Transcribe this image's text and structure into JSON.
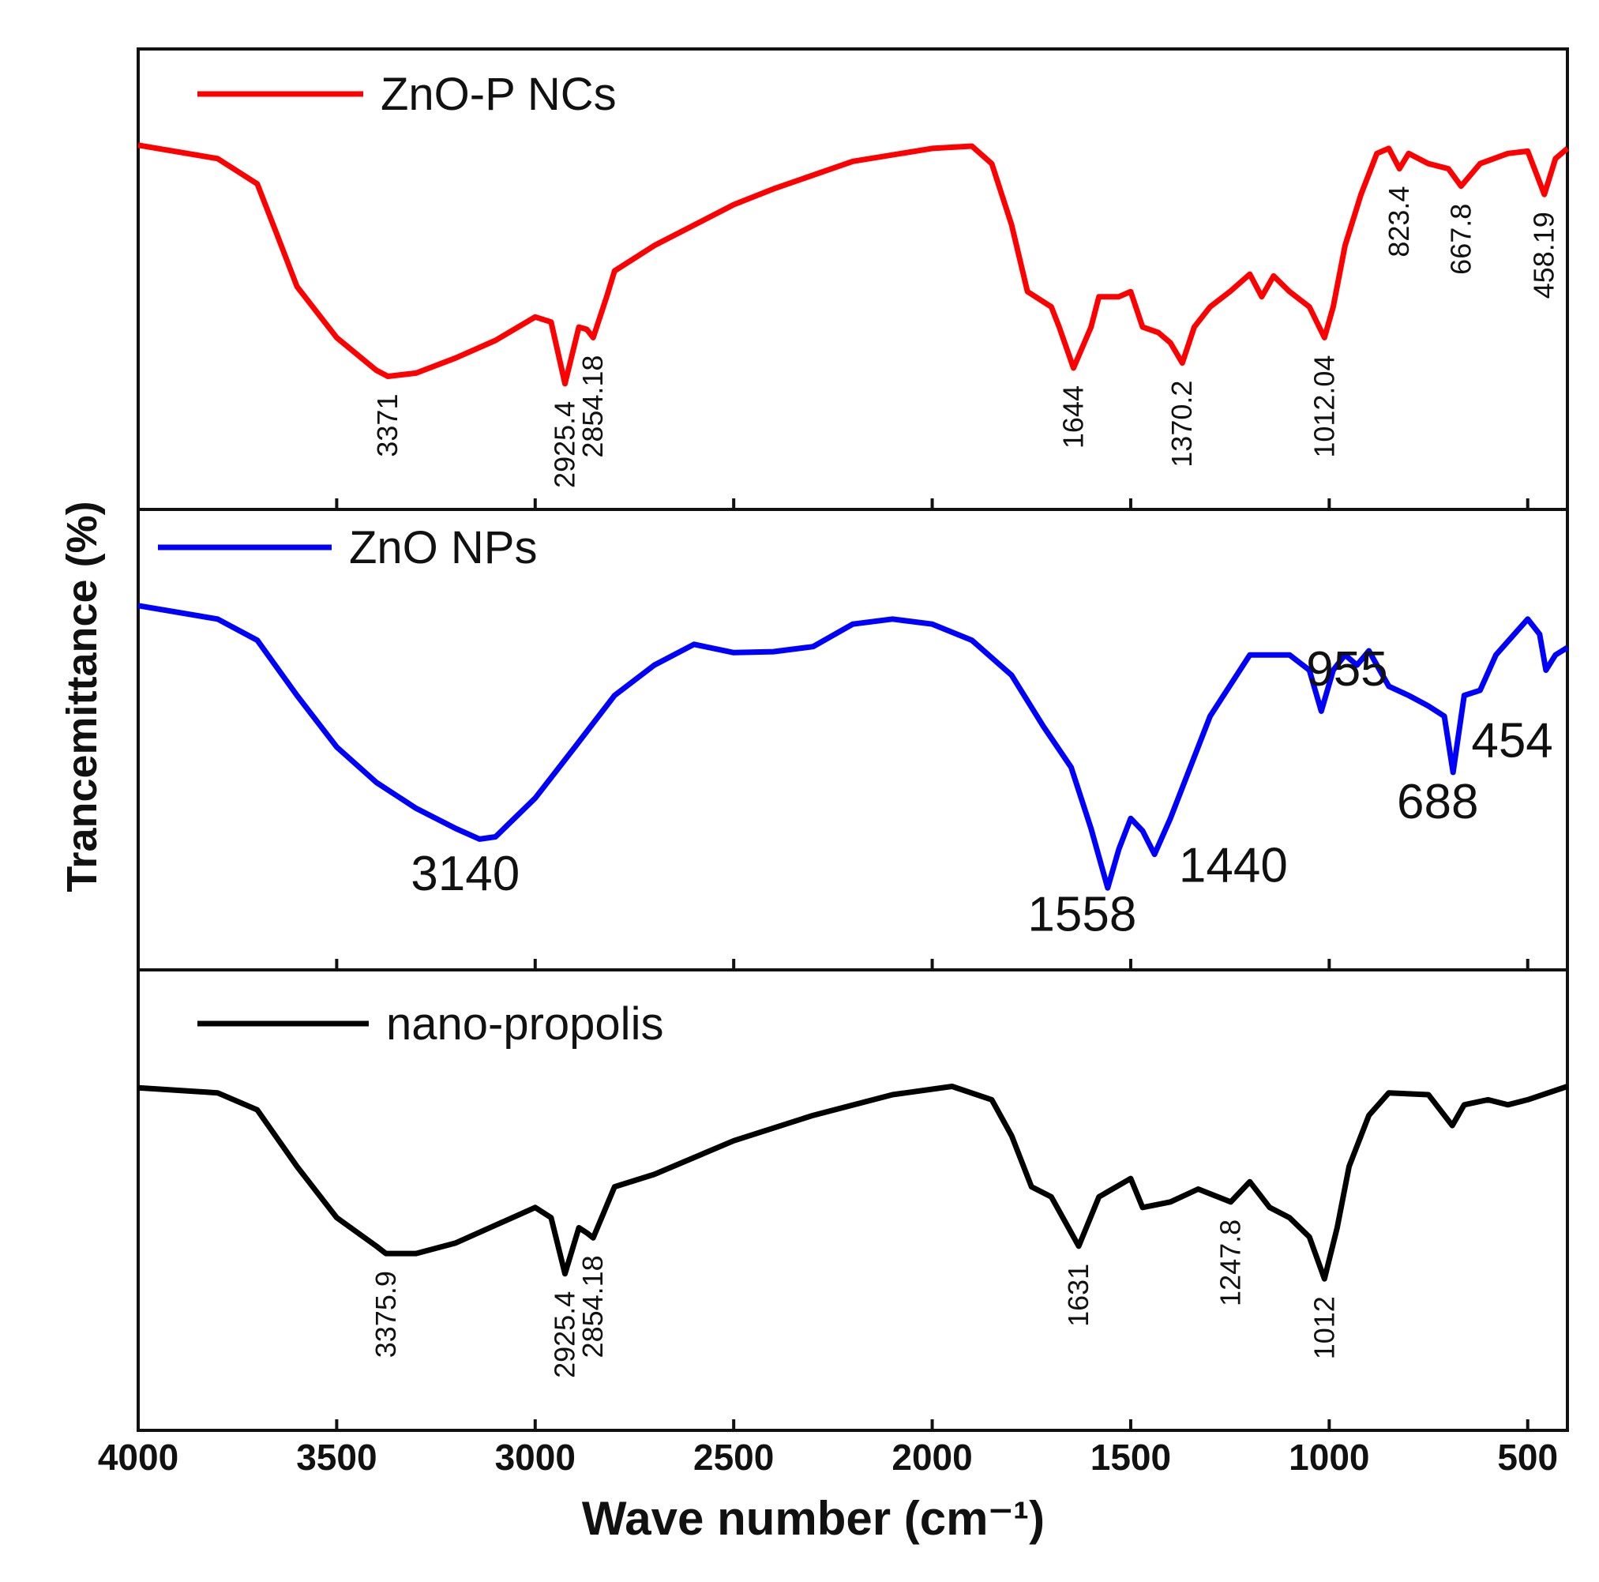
{
  "chart_data": {
    "type": "line",
    "xlabel": "Wave number (cm⁻¹)",
    "ylabel": "Trancemittance (%)",
    "xlim": [
      4000,
      400
    ],
    "xticks": [
      4000,
      3500,
      3000,
      2500,
      2000,
      1500,
      1000,
      500
    ],
    "ylim": [
      0,
      100
    ],
    "series": [
      {
        "name": "ZnO-P NCs",
        "color": "#ff0000",
        "x": [
          4000,
          3800,
          3700,
          3650,
          3600,
          3500,
          3400,
          3371,
          3300,
          3200,
          3100,
          3000,
          2960,
          2925,
          2890,
          2870,
          2854,
          2820,
          2800,
          2700,
          2500,
          2400,
          2200,
          2000,
          1900,
          1850,
          1800,
          1760,
          1700,
          1680,
          1644,
          1600,
          1580,
          1530,
          1500,
          1470,
          1430,
          1400,
          1370,
          1340,
          1300,
          1250,
          1200,
          1170,
          1140,
          1100,
          1050,
          1012,
          990,
          960,
          920,
          880,
          850,
          823,
          800,
          750,
          700,
          668,
          620,
          550,
          500,
          458,
          430,
          400
        ],
        "values": [
          79.1,
          76.2,
          70.7,
          59.6,
          48.4,
          37.3,
          30.2,
          28.9,
          29.6,
          32.9,
          36.7,
          41.8,
          40.7,
          27.3,
          39.6,
          39.1,
          37.3,
          46.2,
          51.8,
          57.3,
          66.2,
          69.6,
          75.6,
          78.4,
          78.9,
          75.1,
          61.8,
          47.3,
          44,
          39.6,
          30.7,
          39.6,
          46.2,
          46.2,
          47.3,
          39.6,
          38.4,
          36.2,
          31.8,
          39.6,
          44,
          47.3,
          51.1,
          46.2,
          50.7,
          47.3,
          44,
          37.3,
          44,
          57.3,
          68.4,
          77.3,
          78.4,
          74,
          77.3,
          75.1,
          74,
          70.2,
          75.1,
          77.3,
          77.8,
          68.4,
          76.2,
          78.4
        ],
        "peaks": [
          3371,
          2925.4,
          2854.18,
          1644,
          1370.2,
          1012.04,
          823.4,
          667.8,
          458.19
        ]
      },
      {
        "name": "ZnO NPs",
        "color": "#0000ff",
        "x": [
          4000,
          3800,
          3700,
          3600,
          3500,
          3400,
          3300,
          3200,
          3140,
          3100,
          3000,
          2900,
          2800,
          2700,
          2600,
          2500,
          2400,
          2300,
          2200,
          2100,
          2000,
          1900,
          1800,
          1720,
          1650,
          1600,
          1558,
          1530,
          1500,
          1470,
          1440,
          1400,
          1300,
          1200,
          1100,
          1050,
          1020,
          990,
          960,
          930,
          900,
          850,
          800,
          750,
          710,
          688,
          660,
          620,
          580,
          500,
          470,
          454,
          430,
          400
        ],
        "values": [
          79.1,
          76.2,
          71.6,
          59.6,
          48.4,
          40.7,
          35.1,
          30.7,
          28.4,
          28.9,
          37.3,
          48.4,
          59.6,
          66.2,
          70.7,
          68.9,
          69.1,
          70.2,
          75.1,
          76.2,
          75.1,
          71.6,
          64,
          52.9,
          44,
          30.7,
          17.8,
          26.2,
          32.9,
          30.2,
          25.1,
          32.9,
          55.1,
          68.4,
          68.4,
          65.1,
          56.2,
          65.1,
          68.4,
          66.2,
          69.3,
          61.6,
          59.6,
          57.3,
          55.1,
          42.9,
          59.6,
          60.7,
          68.4,
          76.2,
          72.9,
          65.1,
          68.4,
          70
        ],
        "peaks": [
          3140,
          1558,
          1440,
          955,
          688,
          454
        ]
      },
      {
        "name": "nano-propolis",
        "color": "#000000",
        "x": [
          4000,
          3800,
          3700,
          3600,
          3500,
          3400,
          3376,
          3300,
          3200,
          3000,
          2960,
          2925,
          2890,
          2870,
          2854,
          2800,
          2700,
          2500,
          2300,
          2100,
          1950,
          1850,
          1800,
          1750,
          1700,
          1631,
          1580,
          1500,
          1470,
          1400,
          1330,
          1248,
          1200,
          1150,
          1100,
          1050,
          1012,
          980,
          950,
          900,
          850,
          750,
          690,
          660,
          600,
          550,
          500,
          400
        ],
        "values": [
          74.4,
          73.3,
          69.6,
          57.3,
          46.2,
          40,
          38.4,
          38.4,
          40.7,
          48.4,
          46.2,
          34,
          44,
          42.9,
          41.8,
          52.9,
          55.6,
          62.9,
          68.4,
          72.9,
          74.7,
          71.8,
          64,
          52.9,
          50.7,
          40,
          50.7,
          54.7,
          48.4,
          49.6,
          52.4,
          49.6,
          54,
          48.4,
          46.2,
          42,
          32.9,
          44,
          57.3,
          68.4,
          73.3,
          72.9,
          66.2,
          70.7,
          71.8,
          70.7,
          71.8,
          74.7
        ],
        "peaks": [
          3375.9,
          2925.4,
          2854.18,
          1631,
          1247.8,
          1012
        ]
      }
    ]
  }
}
